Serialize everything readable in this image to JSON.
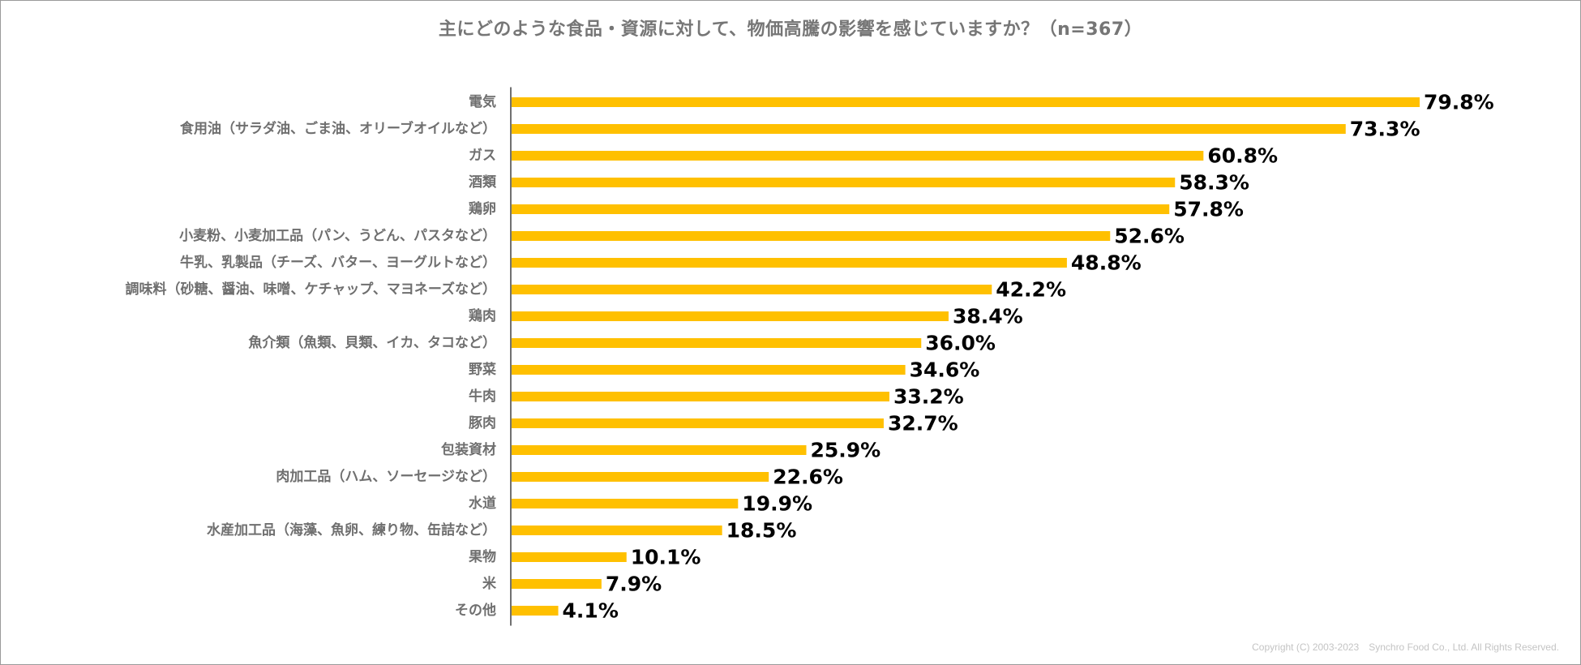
{
  "chart_data": {
    "type": "bar",
    "orientation": "horizontal",
    "title": "主にどのような食品・資源に対して、物価高騰の影響を感じていますか？（n=367）",
    "categories": [
      "電気",
      "食用油（サラダ油、ごま油、オリーブオイルなど）",
      "ガス",
      "酒類",
      "鶏卵",
      "小麦粉、小麦加工品（パン、うどん、パスタなど）",
      "牛乳、乳製品（チーズ、バター、ヨーグルトなど）",
      "調味料（砂糖、醤油、味噌、ケチャップ、マヨネーズなど）",
      "鶏肉",
      "魚介類（魚類、貝類、イカ、タコなど）",
      "野菜",
      "牛肉",
      "豚肉",
      "包装資材",
      "肉加工品（ハム、ソーセージなど）",
      "水道",
      "水産加工品（海藻、魚卵、練り物、缶詰など）",
      "果物",
      "米",
      "その他"
    ],
    "values": [
      79.8,
      73.3,
      60.8,
      58.3,
      57.8,
      52.6,
      48.8,
      42.2,
      38.4,
      36.0,
      34.6,
      33.2,
      32.7,
      25.9,
      22.6,
      19.9,
      18.5,
      10.1,
      7.9,
      4.1
    ],
    "value_labels": [
      "79.8%",
      "73.3%",
      "60.8%",
      "58.3%",
      "57.8%",
      "52.6%",
      "48.8%",
      "42.2%",
      "38.4%",
      "36.0%",
      "34.6%",
      "33.2%",
      "32.7%",
      "25.9%",
      "22.6%",
      "19.9%",
      "18.5%",
      "10.1%",
      "7.9%",
      "4.1%"
    ],
    "unit": "%",
    "xlim": [
      0,
      100
    ],
    "xlabel": "",
    "ylabel": "",
    "grid": false,
    "legend": "none",
    "bar_color": "#FFC000"
  },
  "footer": {
    "copyright": "Copyright (C) 2003-2023　Synchro Food Co., Ltd. All Rights Reserved."
  }
}
